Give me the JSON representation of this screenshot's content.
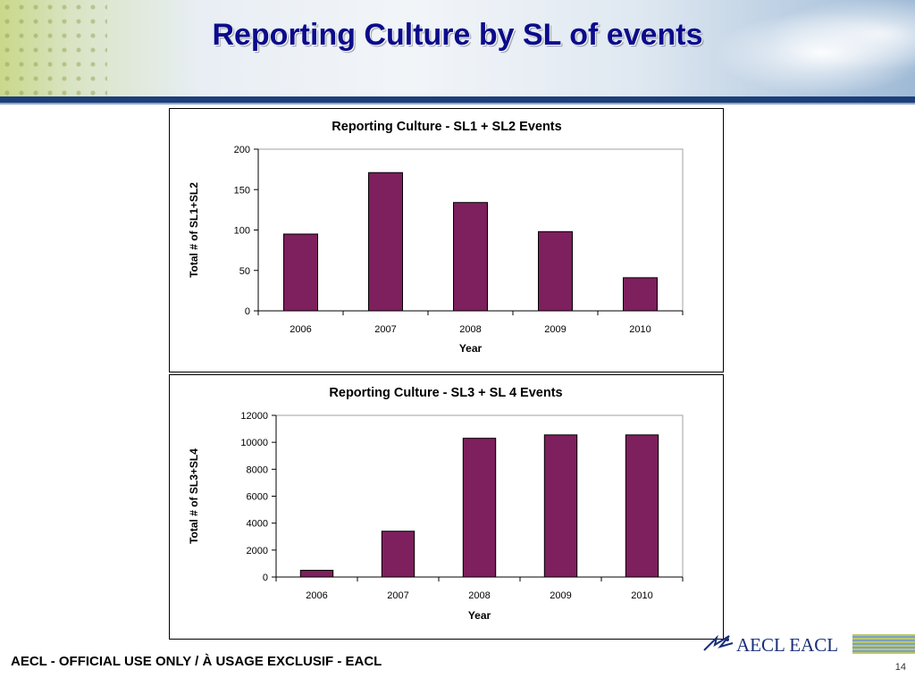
{
  "slide": {
    "title": "Reporting Culture by SL of events",
    "footer": "AECL - OFFICIAL USE ONLY / À USAGE EXCLUSIF - EACL",
    "page_number": "14",
    "logo_text": "AECL EACL"
  },
  "colors": {
    "bar": "#7e1f5e",
    "title": "#0b0b8c",
    "header_bar": "#1c3f7a"
  },
  "chart_data": [
    {
      "type": "bar",
      "title": "Reporting Culture - SL1 + SL2 Events",
      "xlabel": "Year",
      "ylabel": "Total # of SL1+SL2",
      "categories": [
        "2006",
        "2007",
        "2008",
        "2009",
        "2010"
      ],
      "values": [
        95,
        171,
        134,
        98,
        41
      ],
      "ylim": [
        0,
        200
      ],
      "yticks": [
        0,
        50,
        100,
        150,
        200
      ],
      "grid": false,
      "legend": "none"
    },
    {
      "type": "bar",
      "title": "Reporting Culture - SL3 + SL 4 Events",
      "xlabel": "Year",
      "ylabel": "Total # of SL3+SL4",
      "categories": [
        "2006",
        "2007",
        "2008",
        "2009",
        "2010"
      ],
      "values": [
        500,
        3400,
        10300,
        10550,
        10550
      ],
      "ylim": [
        0,
        12000
      ],
      "yticks": [
        0,
        2000,
        4000,
        6000,
        8000,
        10000,
        12000
      ],
      "grid": false,
      "legend": "none"
    }
  ]
}
